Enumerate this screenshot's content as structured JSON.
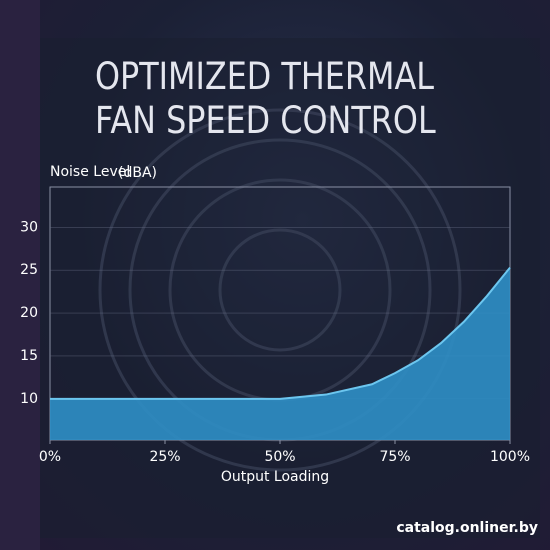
{
  "chart_data": {
    "type": "area",
    "title": "OPTIMIZED THERMAL FAN SPEED CONTROL",
    "y_label": "Noise Level",
    "y_unit": "(dBA)",
    "x_label": "Output Loading",
    "x": [
      0,
      50,
      60,
      70,
      75,
      80,
      85,
      90,
      95,
      100
    ],
    "values": [
      10,
      10,
      10.5,
      11.7,
      13,
      14.5,
      16.5,
      19,
      22,
      25.3
    ],
    "color": "#2f8fc6",
    "line_color": "#6cc6ef",
    "xlim": [
      0,
      100
    ],
    "xticks": [
      {
        "value": 0,
        "label": "0%"
      },
      {
        "value": 25,
        "label": "25%"
      },
      {
        "value": 50,
        "label": "50%"
      },
      {
        "value": 75,
        "label": "75%"
      },
      {
        "value": 100,
        "label": "100%"
      }
    ],
    "ylim": [
      5.2,
      34.7
    ],
    "yticks": [
      10,
      15,
      20,
      25,
      30
    ],
    "grid": true,
    "watermark": "catalog.onliner.by"
  }
}
